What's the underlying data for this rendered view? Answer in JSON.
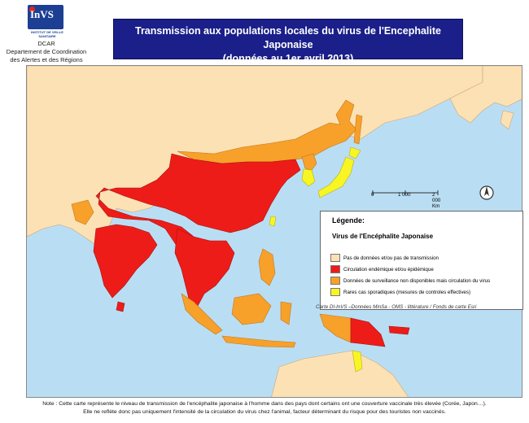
{
  "logo": {
    "text": "InVS",
    "subtitle": "INSTITUT DE VEILLE SANITAIRE"
  },
  "org": {
    "lines": [
      "DCAR",
      "Departement de Coordination",
      "des Alertes et des Régions"
    ]
  },
  "title": {
    "line1": "Transmission aux populations locales du virus de l'Encephalite Japonaise",
    "line2": "(données au 1er avril 2013)"
  },
  "scale": {
    "labels": [
      "0",
      "1 000",
      "2 000 Km"
    ]
  },
  "legend": {
    "title": "Légende:",
    "subtitle": "Virus de l'Encéphalite Japonaise",
    "items": [
      {
        "label": "Pas de données et/ou pas de transmission",
        "color": "#fce1b4"
      },
      {
        "label": "Circulation endémique et/ou épidémique",
        "color": "#ee1c18"
      },
      {
        "label": "Données de surveillance non disponibles mais circulation du virus",
        "color": "#f7a12a"
      },
      {
        "label": "Rares cas sporadiques (mesures de controles effectives)",
        "color": "#f8f525"
      }
    ]
  },
  "credit": "Carte DI-InVS –Données MinSa - OMS - littérature / Fonds de carte Esri",
  "note": {
    "line1": "Note : Cette carte représente le niveau de transmission de l'encéphalite japonaise à l'homme dans des pays dont certains ont une couverture vaccinale très élevée (Corée, Japon…).",
    "line2": "Elle ne reflète donc pas uniquement l'intensité de la circulation du virus chez l'animal, facteur déterminant du risque pour des touristes non vaccinés."
  },
  "colors": {
    "sea": "#b9def4",
    "nodata": "#fce1b4",
    "endemic": "#ee1c18",
    "unavailable": "#f7a12a",
    "sporadic": "#f8f525"
  }
}
